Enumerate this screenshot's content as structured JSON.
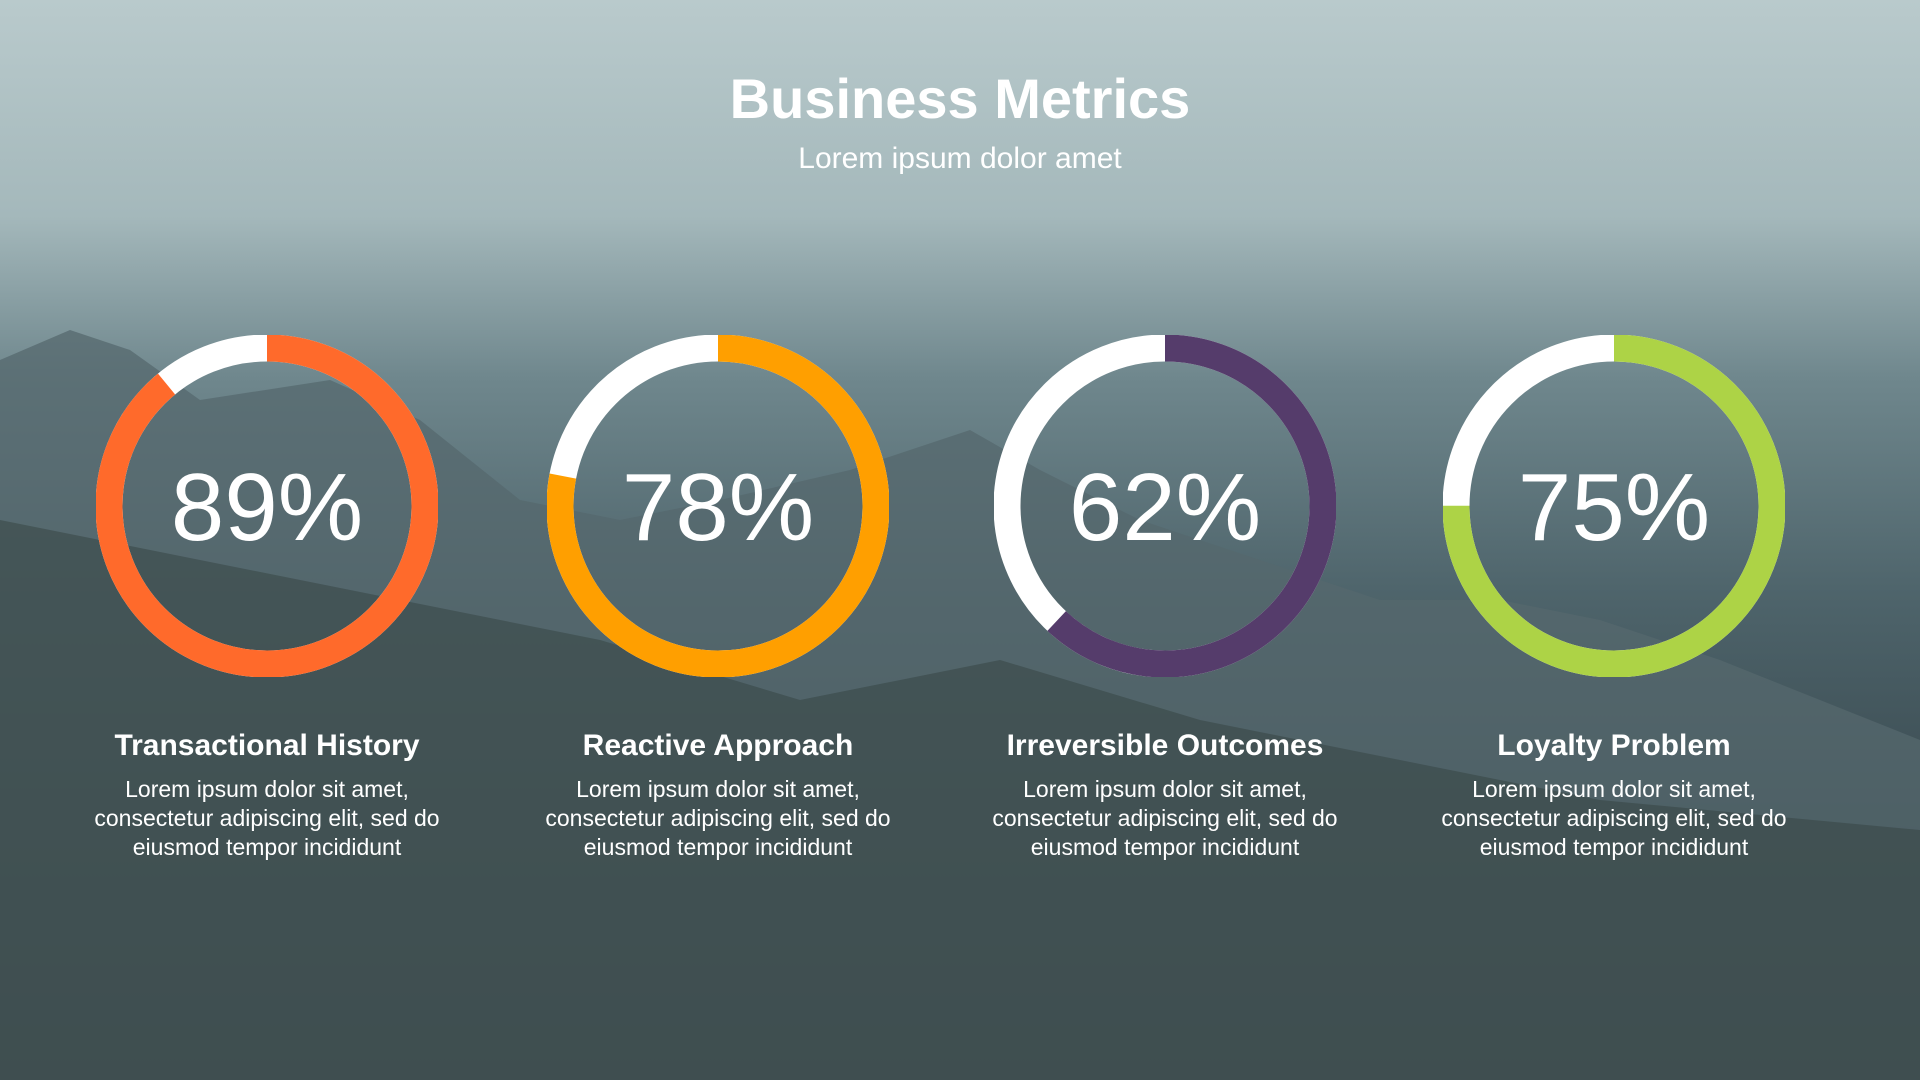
{
  "header": {
    "title": "Business Metrics",
    "subtitle": "Lorem ipsum dolor amet"
  },
  "metrics": [
    {
      "value": 89,
      "display": "89%",
      "label": "Transactional  History",
      "description": "Lorem ipsum dolor sit amet, consectetur adipiscing elit, sed do eiusmod tempor incididunt",
      "color": "#FF6A2B"
    },
    {
      "value": 78,
      "display": "78%",
      "label": "Reactive Approach",
      "description": "Lorem ipsum dolor sit amet, consectetur adipiscing elit, sed do eiusmod tempor incididunt",
      "color": "#FF9F00"
    },
    {
      "value": 62,
      "display": "62%",
      "label": "Irreversible Outcomes",
      "description": "Lorem ipsum dolor sit amet, consectetur adipiscing elit, sed do eiusmod tempor incididunt",
      "color": "#553C6B"
    },
    {
      "value": 75,
      "display": "75%",
      "label": "Loyalty Problem",
      "description": "Lorem ipsum dolor sit amet, consectetur adipiscing elit, sed do eiusmod tempor incididunt",
      "color": "#ADD346"
    }
  ],
  "track_color": "#FFFFFF"
}
